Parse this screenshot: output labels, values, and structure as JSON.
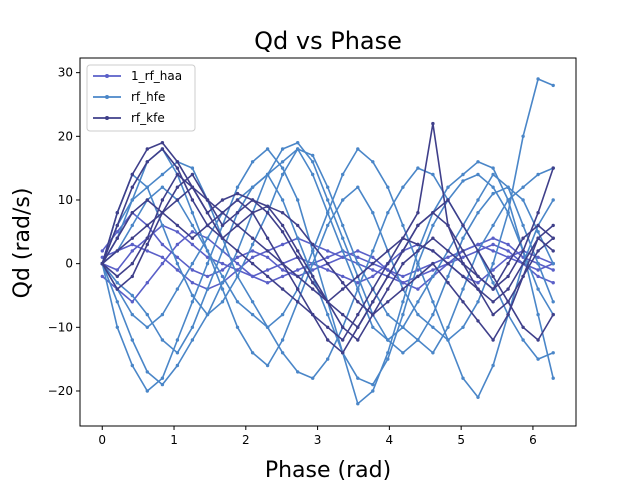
{
  "chart_data": {
    "type": "line",
    "title": "Qd vs Phase",
    "xlabel": "Phase (rad)",
    "ylabel": "Qd (rad/s)",
    "xlim": [
      -0.31,
      6.6
    ],
    "ylim": [
      -25.5,
      32.3
    ],
    "xticks": [
      0,
      1,
      2,
      3,
      4,
      5,
      6
    ],
    "yticks": [
      -20,
      -10,
      0,
      10,
      20,
      30
    ],
    "grid": false,
    "legend_position": "top-left",
    "x_step": 0.2094,
    "series": [
      {
        "name": "1_rf_haa",
        "color": "#5a5fc8",
        "values": [
          [
            0,
            -1,
            2,
            4,
            6,
            5,
            3,
            1,
            0,
            -1,
            -2,
            -3,
            -2,
            -1,
            0,
            1,
            2,
            1,
            0,
            -1,
            -2,
            -1,
            0,
            1,
            2,
            3,
            2,
            1,
            0,
            -1,
            0
          ],
          [
            1,
            2,
            3,
            2,
            1,
            -1,
            -3,
            -4,
            -3,
            -1,
            1,
            2,
            3,
            4,
            3,
            2,
            1,
            0,
            -1,
            -2,
            -3,
            -2,
            -1,
            0,
            2,
            3,
            4,
            3,
            1,
            0,
            -1
          ],
          [
            -2,
            -4,
            -6,
            -3,
            0,
            3,
            5,
            4,
            2,
            0,
            -2,
            -1,
            0,
            1,
            0,
            -1,
            -2,
            -3,
            -2,
            0,
            2,
            3,
            2,
            0,
            -2,
            -3,
            -1,
            1,
            2,
            1,
            0
          ],
          [
            2,
            5,
            8,
            6,
            3,
            1,
            -1,
            -2,
            -1,
            1,
            2,
            1,
            -1,
            -2,
            -1,
            0,
            1,
            2,
            1,
            -1,
            -3,
            -4,
            -2,
            0,
            1,
            2,
            3,
            2,
            0,
            -2,
            -3
          ]
        ]
      },
      {
        "name": "rf_hfe",
        "color": "#4a86c8",
        "values": [
          [
            0,
            8,
            14,
            12,
            6,
            0,
            -5,
            -8,
            -6,
            -2,
            3,
            8,
            14,
            18,
            17,
            12,
            6,
            0,
            -4,
            -8,
            -10,
            -12,
            -14,
            -10,
            -4,
            2,
            6,
            10,
            12,
            14,
            15
          ],
          [
            0,
            -6,
            -12,
            -17,
            -19,
            -16,
            -12,
            -8,
            -3,
            2,
            8,
            14,
            18,
            19,
            16,
            10,
            4,
            -2,
            -8,
            -12,
            -14,
            -12,
            -8,
            -2,
            4,
            8,
            11,
            12,
            10,
            5,
            0
          ],
          [
            0,
            6,
            10,
            12,
            14,
            16,
            15,
            10,
            4,
            -2,
            -6,
            -10,
            -14,
            -17,
            -18,
            -15,
            -10,
            -4,
            2,
            8,
            12,
            15,
            14,
            10,
            6,
            2,
            -3,
            -8,
            -12,
            -15,
            -14
          ],
          [
            0,
            -4,
            -8,
            -10,
            -8,
            -4,
            0,
            4,
            8,
            10,
            12,
            14,
            10,
            4,
            -2,
            -8,
            -14,
            -18,
            -19,
            -15,
            -8,
            0,
            6,
            10,
            13,
            14,
            12,
            8,
            2,
            -4,
            -8
          ],
          [
            0,
            -10,
            -16,
            -20,
            -18,
            -12,
            -6,
            0,
            6,
            12,
            16,
            18,
            15,
            10,
            2,
            -6,
            -14,
            -22,
            -20,
            -14,
            -6,
            2,
            8,
            12,
            14,
            16,
            15,
            10,
            2,
            -8,
            -18
          ],
          [
            0,
            4,
            10,
            16,
            18,
            14,
            8,
            2,
            -4,
            -10,
            -14,
            -16,
            -12,
            -6,
            0,
            6,
            10,
            12,
            8,
            2,
            -4,
            -8,
            -10,
            -12,
            -10,
            -6,
            0,
            8,
            20,
            29,
            28
          ],
          [
            0,
            2,
            6,
            10,
            12,
            10,
            6,
            2,
            -2,
            -6,
            -8,
            -10,
            -8,
            -4,
            2,
            8,
            14,
            18,
            16,
            12,
            6,
            0,
            -6,
            -12,
            -18,
            -21,
            -16,
            -8,
            0,
            6,
            10
          ],
          [
            0,
            -3,
            -5,
            -8,
            -12,
            -14,
            -10,
            -4,
            2,
            8,
            12,
            14,
            16,
            18,
            14,
            8,
            2,
            -4,
            -10,
            -12,
            -10,
            -6,
            -2,
            2,
            6,
            10,
            14,
            12,
            6,
            0,
            -6
          ]
        ]
      },
      {
        "name": "rf_kfe",
        "color": "#3f3f8a",
        "values": [
          [
            0,
            6,
            12,
            16,
            18,
            15,
            10,
            6,
            4,
            6,
            8,
            9,
            8,
            6,
            3,
            0,
            -3,
            -6,
            -8,
            -6,
            -4,
            -2,
            0,
            -3,
            -6,
            -9,
            -12,
            -8,
            -2,
            4,
            2
          ],
          [
            0,
            -4,
            -2,
            3,
            8,
            12,
            14,
            10,
            6,
            8,
            10,
            9,
            6,
            2,
            -2,
            -6,
            -10,
            -12,
            -8,
            -4,
            0,
            2,
            4,
            2,
            0,
            -2,
            -4,
            0,
            4,
            6,
            4
          ],
          [
            0,
            8,
            14,
            18,
            19,
            16,
            12,
            8,
            10,
            11,
            10,
            8,
            5,
            1,
            -3,
            -6,
            -8,
            -10,
            -6,
            -2,
            2,
            6,
            8,
            10,
            6,
            2,
            -2,
            -6,
            -10,
            -12,
            -8
          ],
          [
            0,
            2,
            4,
            6,
            8,
            10,
            12,
            10,
            8,
            6,
            4,
            2,
            0,
            -2,
            -4,
            -6,
            -4,
            -2,
            0,
            2,
            4,
            3,
            2,
            0,
            -2,
            -4,
            -6,
            -4,
            0,
            4,
            6
          ],
          [
            0,
            -2,
            0,
            4,
            10,
            14,
            12,
            8,
            4,
            2,
            0,
            -2,
            -4,
            -6,
            -8,
            -10,
            -12,
            -8,
            -4,
            0,
            4,
            8,
            22,
            6,
            0,
            -4,
            -8,
            -6,
            -2,
            2,
            4
          ],
          [
            0,
            4,
            8,
            10,
            8,
            6,
            4,
            6,
            8,
            10,
            8,
            4,
            0,
            -4,
            -8,
            -12,
            -14,
            -10,
            -6,
            -2,
            2,
            6,
            8,
            6,
            2,
            -2,
            -4,
            -2,
            2,
            8,
            15
          ]
        ]
      }
    ]
  }
}
